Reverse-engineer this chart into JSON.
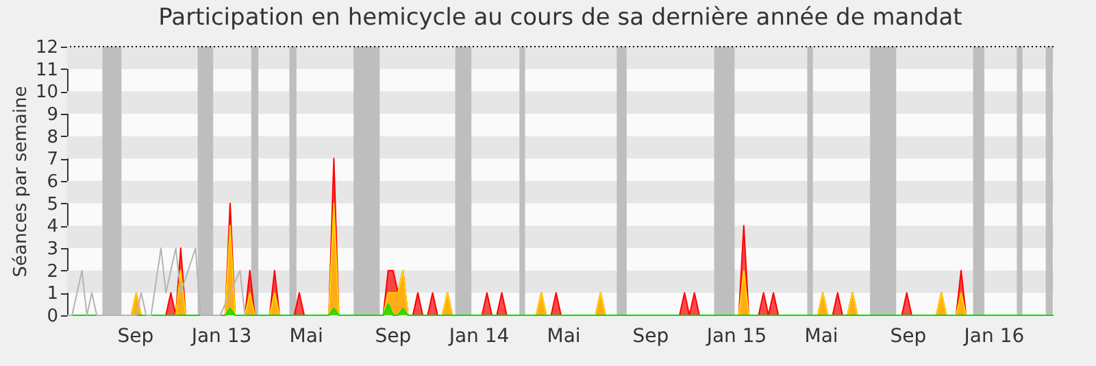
{
  "chart_data": {
    "type": "area",
    "title": "Participation en hemicycle au cours de sa dernière année de mandat",
    "ylabel": "Séances par semaine",
    "xlim": [
      "2012-06-11",
      "2016-04-09"
    ],
    "ylim": [
      0,
      12
    ],
    "yticks": [
      0,
      1,
      2,
      3,
      4,
      5,
      6,
      7,
      8,
      9,
      10,
      11,
      12
    ],
    "xticks": [
      {
        "value": "2012-09-15",
        "label": "Sep"
      },
      {
        "value": "2013-01-15",
        "label": "Jan 13"
      },
      {
        "value": "2013-05-15",
        "label": "Mai"
      },
      {
        "value": "2013-09-15",
        "label": "Sep"
      },
      {
        "value": "2014-01-15",
        "label": "Jan 14"
      },
      {
        "value": "2014-05-15",
        "label": "Mai"
      },
      {
        "value": "2014-09-15",
        "label": "Sep"
      },
      {
        "value": "2015-01-15",
        "label": "Jan 15"
      },
      {
        "value": "2015-05-15",
        "label": "Mai"
      },
      {
        "value": "2015-09-15",
        "label": "Sep"
      },
      {
        "value": "2016-01-15",
        "label": "Jan 16"
      }
    ],
    "grid": false,
    "bands": [
      {
        "axis": "y",
        "from": 1,
        "to": 2,
        "color": "#e6e6e6"
      },
      {
        "axis": "y",
        "from": 3,
        "to": 4,
        "color": "#e6e6e6"
      },
      {
        "axis": "y",
        "from": 5,
        "to": 6,
        "color": "#e6e6e6"
      },
      {
        "axis": "y",
        "from": 7,
        "to": 8,
        "color": "#e6e6e6"
      },
      {
        "axis": "y",
        "from": 9,
        "to": 10,
        "color": "#e6e6e6"
      },
      {
        "axis": "y",
        "from": 11,
        "to": 12,
        "color": "#e6e6e6"
      },
      {
        "axis": "x",
        "from": "2012-07-31",
        "to": "2012-08-27",
        "color": "#bebebe"
      },
      {
        "axis": "x",
        "from": "2012-12-13",
        "to": "2013-01-04",
        "color": "#bebebe"
      },
      {
        "axis": "x",
        "from": "2013-02-27",
        "to": "2013-03-09",
        "color": "#bebebe"
      },
      {
        "axis": "x",
        "from": "2013-04-22",
        "to": "2013-05-02",
        "color": "#bebebe"
      },
      {
        "axis": "x",
        "from": "2013-07-22",
        "to": "2013-08-28",
        "color": "#bebebe"
      },
      {
        "axis": "x",
        "from": "2013-12-13",
        "to": "2014-01-05",
        "color": "#bebebe"
      },
      {
        "axis": "x",
        "from": "2014-03-14",
        "to": "2014-03-22",
        "color": "#bebebe"
      },
      {
        "axis": "x",
        "from": "2014-07-30",
        "to": "2014-08-13",
        "color": "#bebebe"
      },
      {
        "axis": "x",
        "from": "2014-12-15",
        "to": "2015-01-13",
        "color": "#bebebe"
      },
      {
        "axis": "x",
        "from": "2015-04-26",
        "to": "2015-05-04",
        "color": "#bebebe"
      },
      {
        "axis": "x",
        "from": "2015-07-24",
        "to": "2015-08-30",
        "color": "#bebebe"
      },
      {
        "axis": "x",
        "from": "2015-12-17",
        "to": "2016-01-02",
        "color": "#bebebe"
      },
      {
        "axis": "x",
        "from": "2016-02-17",
        "to": "2016-02-25",
        "color": "#bebebe"
      },
      {
        "axis": "x",
        "from": "2016-03-29",
        "to": "2016-04-08",
        "color": "#bebebe"
      }
    ],
    "series": [
      {
        "color": "#ff0000",
        "x": [
          "2012-06-11",
          "2012-09-10",
          "2012-09-17",
          "2012-09-24",
          "2012-10-29",
          "2012-11-05",
          "2012-11-12",
          "2012-11-19",
          "2012-11-26",
          "2013-01-21",
          "2013-01-28",
          "2013-02-04",
          "2013-02-18",
          "2013-02-25",
          "2013-03-04",
          "2013-03-25",
          "2013-04-01",
          "2013-04-08",
          "2013-04-29",
          "2013-05-06",
          "2013-05-13",
          "2013-06-17",
          "2013-06-24",
          "2013-07-01",
          "2013-09-02",
          "2013-09-09",
          "2013-09-16",
          "2013-09-23",
          "2013-09-30",
          "2013-10-07",
          "2013-10-14",
          "2013-10-21",
          "2013-10-28",
          "2013-11-04",
          "2013-11-11",
          "2013-11-18",
          "2013-11-25",
          "2013-12-02",
          "2013-12-09",
          "2014-01-20",
          "2014-01-27",
          "2014-02-03",
          "2014-02-10",
          "2014-02-17",
          "2014-02-24",
          "2014-04-07",
          "2014-04-14",
          "2014-04-21",
          "2014-04-28",
          "2014-05-05",
          "2014-05-12",
          "2014-06-30",
          "2014-07-07",
          "2014-07-14",
          "2014-10-27",
          "2014-11-03",
          "2014-11-10",
          "2014-11-17",
          "2014-11-24",
          "2015-01-19",
          "2015-01-26",
          "2015-02-02",
          "2015-02-16",
          "2015-02-23",
          "2015-03-02",
          "2015-03-09",
          "2015-03-16",
          "2015-05-11",
          "2015-05-18",
          "2015-05-25",
          "2015-06-01",
          "2015-06-08",
          "2015-06-15",
          "2015-06-22",
          "2015-06-29",
          "2015-07-06",
          "2015-09-07",
          "2015-09-14",
          "2015-09-21",
          "2015-10-26",
          "2015-11-02",
          "2015-11-09",
          "2015-11-23",
          "2015-11-30",
          "2015-12-07",
          "2016-04-09"
        ],
        "values": [
          0,
          0,
          1,
          0,
          0,
          1,
          0,
          3,
          0,
          0,
          5,
          0,
          0,
          2,
          0,
          0,
          2,
          0,
          0,
          1,
          0,
          0,
          7,
          0,
          0,
          2,
          2,
          1,
          2,
          0,
          0,
          1,
          0,
          0,
          1,
          0,
          0,
          1,
          0,
          0,
          1,
          0,
          0,
          1,
          0,
          0,
          1,
          0,
          0,
          1,
          0,
          0,
          1,
          0,
          0,
          1,
          0,
          1,
          0,
          0,
          4,
          0,
          0,
          1,
          0,
          1,
          0,
          0,
          1,
          0,
          0,
          1,
          0,
          0,
          1,
          0,
          0,
          1,
          0,
          0,
          1,
          0,
          0,
          2,
          0,
          0
        ]
      },
      {
        "color": "#ffd700",
        "x": [
          "2012-06-11",
          "2012-09-10",
          "2012-09-17",
          "2012-09-24",
          "2012-11-12",
          "2012-11-19",
          "2012-11-26",
          "2013-01-21",
          "2013-01-28",
          "2013-02-04",
          "2013-02-18",
          "2013-02-25",
          "2013-03-04",
          "2013-03-25",
          "2013-04-01",
          "2013-04-08",
          "2013-06-17",
          "2013-06-24",
          "2013-07-01",
          "2013-09-02",
          "2013-09-09",
          "2013-09-16",
          "2013-09-23",
          "2013-09-30",
          "2013-10-07",
          "2013-11-25",
          "2013-12-02",
          "2013-12-09",
          "2014-04-07",
          "2014-04-14",
          "2014-04-21",
          "2014-06-30",
          "2014-07-07",
          "2014-07-14",
          "2015-01-19",
          "2015-01-26",
          "2015-02-02",
          "2015-05-11",
          "2015-05-18",
          "2015-05-25",
          "2015-06-22",
          "2015-06-29",
          "2015-07-06",
          "2015-10-26",
          "2015-11-02",
          "2015-11-09",
          "2015-11-23",
          "2015-11-30",
          "2015-12-07",
          "2016-04-09"
        ],
        "values": [
          0,
          0,
          1,
          0,
          0,
          2,
          0,
          0,
          4,
          0,
          0,
          1,
          0,
          0,
          1,
          0,
          0,
          5,
          0,
          0,
          1,
          1,
          1,
          2,
          0,
          0,
          1,
          0,
          0,
          1,
          0,
          0,
          1,
          0,
          0,
          2,
          0,
          0,
          1,
          0,
          0,
          1,
          0,
          0,
          1,
          0,
          0,
          1,
          0,
          0
        ]
      },
      {
        "color": "#00e000",
        "x": [
          "2012-06-11",
          "2013-01-21",
          "2013-01-28",
          "2013-02-04",
          "2013-06-17",
          "2013-06-24",
          "2013-07-01",
          "2013-09-02",
          "2013-09-09",
          "2013-09-16",
          "2013-09-23",
          "2013-09-30",
          "2013-10-07",
          "2016-04-09"
        ],
        "values": [
          0,
          0,
          0.3,
          0,
          0,
          0.3,
          0,
          0,
          0.5,
          0,
          0,
          0.3,
          0,
          0
        ]
      },
      {
        "type": "line",
        "color": "#b4b4b4",
        "x": [
          "2012-06-11",
          "2012-06-18",
          "2012-07-02",
          "2012-07-09",
          "2012-07-16",
          "2012-07-23",
          "2012-09-17",
          "2012-09-24",
          "2012-10-01",
          "2012-10-08",
          "2012-10-22",
          "2012-10-29",
          "2012-11-12",
          "2012-11-19",
          "2012-12-10",
          "2012-12-17",
          "2013-01-14",
          "2013-01-28",
          "2013-02-11",
          "2013-02-18"
        ],
        "values": [
          0,
          0,
          2,
          0,
          1,
          0,
          0,
          1,
          0,
          0,
          3,
          1,
          3,
          1,
          3,
          0,
          0,
          1,
          2,
          0
        ]
      }
    ]
  }
}
